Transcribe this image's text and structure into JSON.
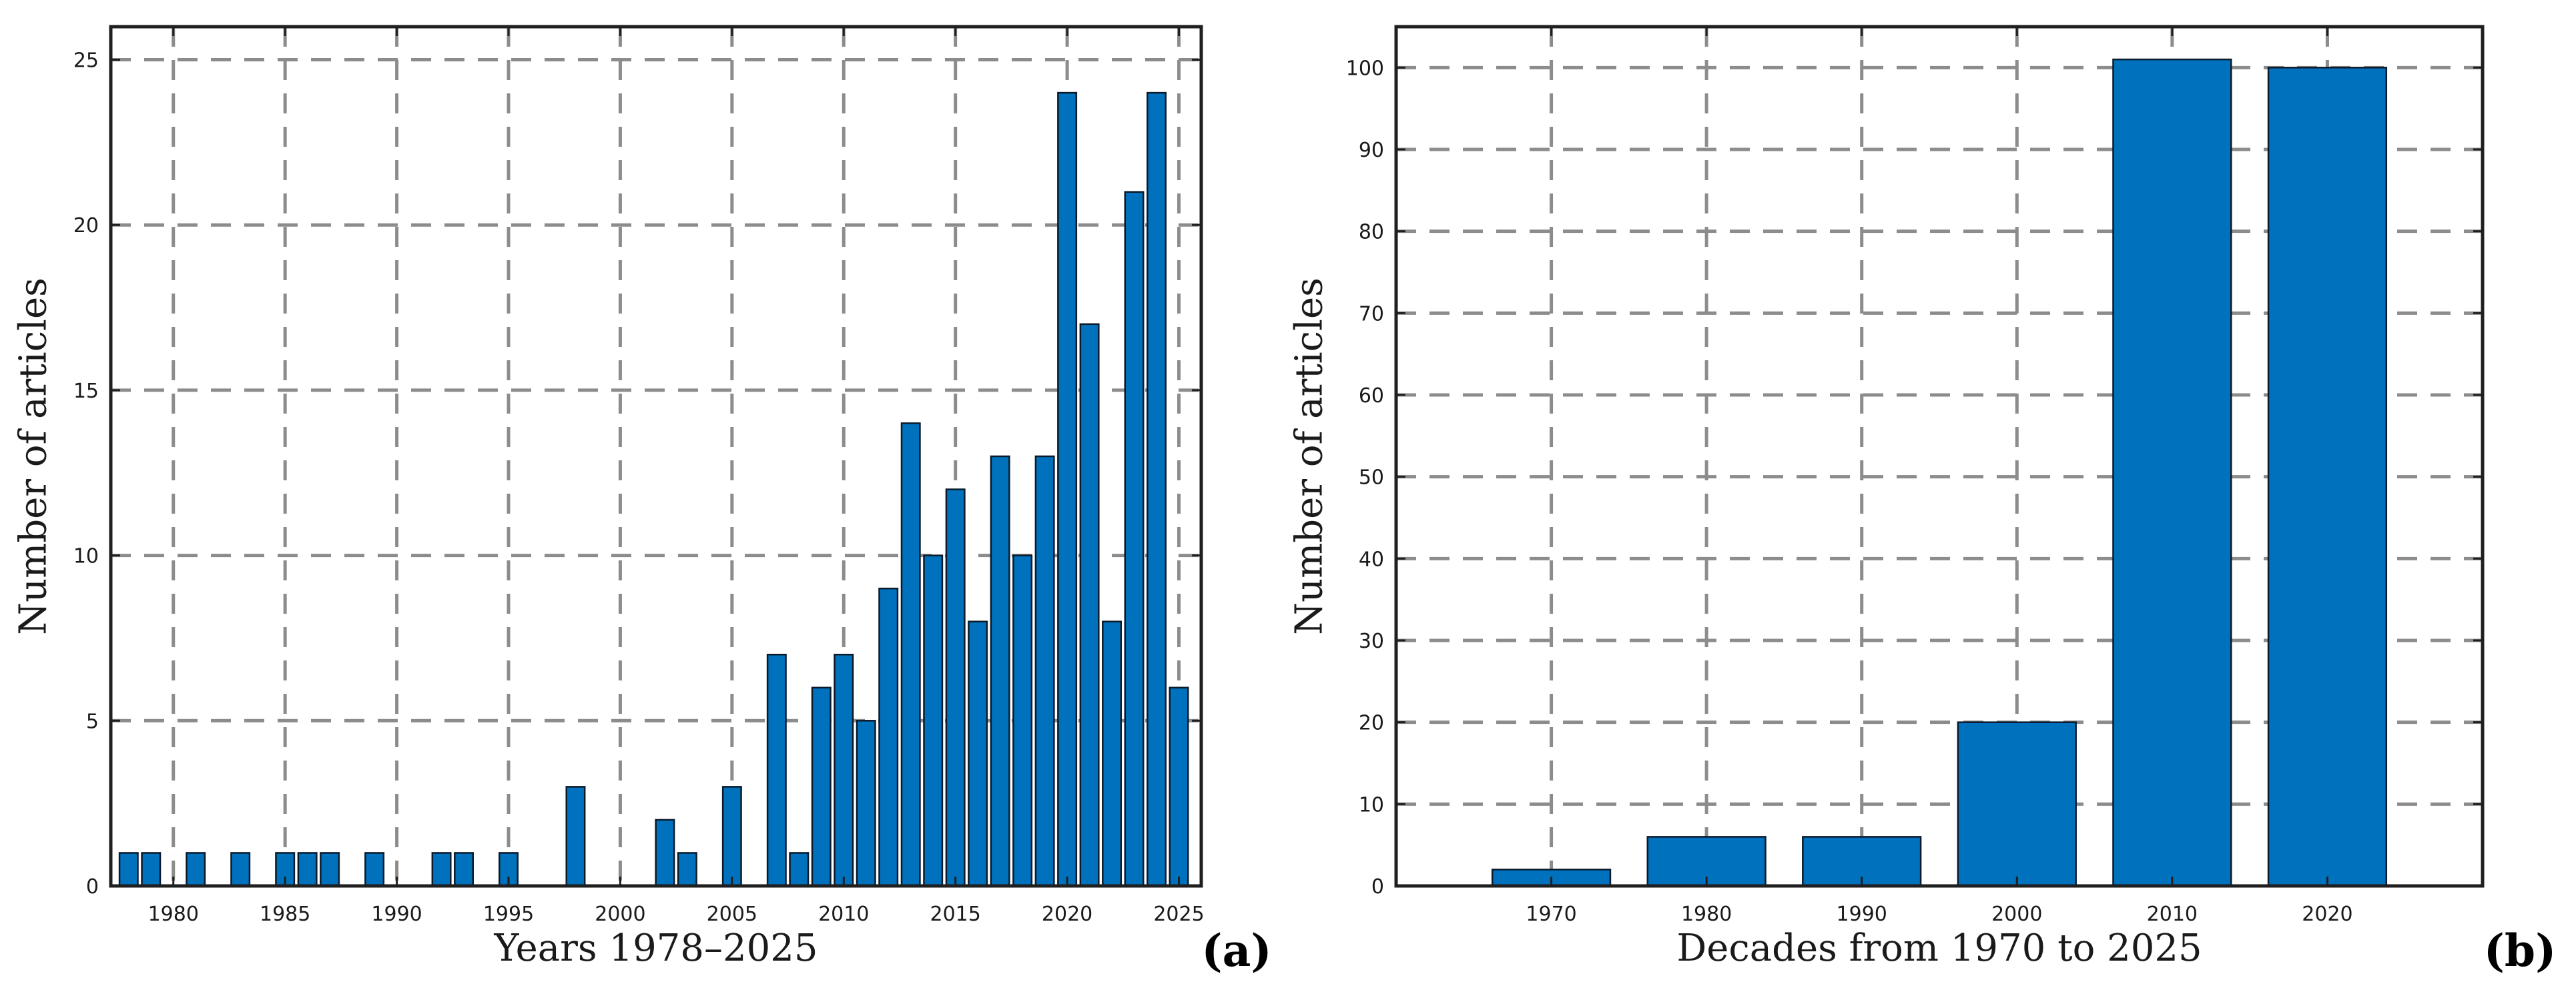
{
  "chart_data": [
    {
      "type": "bar",
      "panel_label": "(a)",
      "xlabel": "Years 1978–2025",
      "ylabel": "Number of articles",
      "xlim": [
        1977.2,
        2026.0
      ],
      "ylim": [
        0,
        26
      ],
      "grid": true,
      "xticks": [
        1980,
        1985,
        1990,
        1995,
        2000,
        2005,
        2010,
        2015,
        2020,
        2025
      ],
      "yticks": [
        0,
        5,
        10,
        15,
        20,
        25
      ],
      "bar_color": "#0072BD",
      "categories": [
        1978,
        1979,
        1980,
        1981,
        1982,
        1983,
        1984,
        1985,
        1986,
        1987,
        1988,
        1989,
        1990,
        1991,
        1992,
        1993,
        1994,
        1995,
        1996,
        1997,
        1998,
        1999,
        2000,
        2001,
        2002,
        2003,
        2004,
        2005,
        2006,
        2007,
        2008,
        2009,
        2010,
        2011,
        2012,
        2013,
        2014,
        2015,
        2016,
        2017,
        2018,
        2019,
        2020,
        2021,
        2022,
        2023,
        2024,
        2025
      ],
      "values": [
        1,
        1,
        0,
        1,
        0,
        1,
        0,
        1,
        1,
        1,
        0,
        1,
        0,
        0,
        1,
        1,
        0,
        1,
        0,
        0,
        3,
        0,
        0,
        0,
        2,
        1,
        0,
        3,
        0,
        7,
        1,
        6,
        7,
        5,
        9,
        14,
        10,
        12,
        8,
        13,
        10,
        13,
        24,
        17,
        8,
        21,
        24,
        6
      ]
    },
    {
      "type": "bar",
      "panel_label": "(b)",
      "xlabel": "Decades from 1970 to 2025",
      "ylabel": "Number of articles",
      "xlim": [
        1960,
        2030
      ],
      "ylim": [
        0,
        105
      ],
      "grid": true,
      "xticks": [
        1970,
        1980,
        1990,
        2000,
        2010,
        2020
      ],
      "yticks": [
        0,
        10,
        20,
        30,
        40,
        50,
        60,
        70,
        80,
        90,
        100
      ],
      "bar_color": "#0072BD",
      "categories": [
        1970,
        1980,
        1990,
        2000,
        2010,
        2020
      ],
      "values": [
        2,
        6,
        6,
        20,
        101,
        100
      ]
    }
  ]
}
